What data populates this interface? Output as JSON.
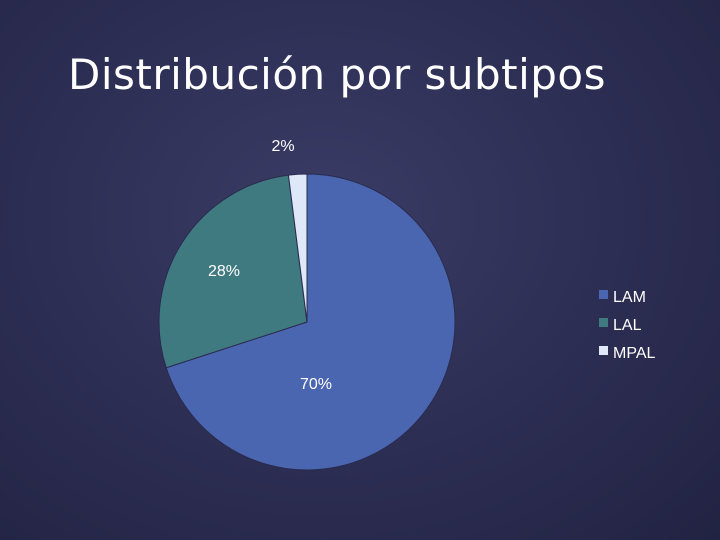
{
  "slide": {
    "title": "Distribución por subtipos"
  },
  "chart_data": {
    "type": "pie",
    "title": "",
    "categories": [
      "LAM",
      "LAL",
      "MPAL"
    ],
    "values": [
      70,
      28,
      2
    ],
    "labels": [
      "70%",
      "28%",
      "2%"
    ],
    "colors": [
      "#4a66b0",
      "#3f7a80",
      "#dfe8f8"
    ],
    "legend_position": "right"
  }
}
